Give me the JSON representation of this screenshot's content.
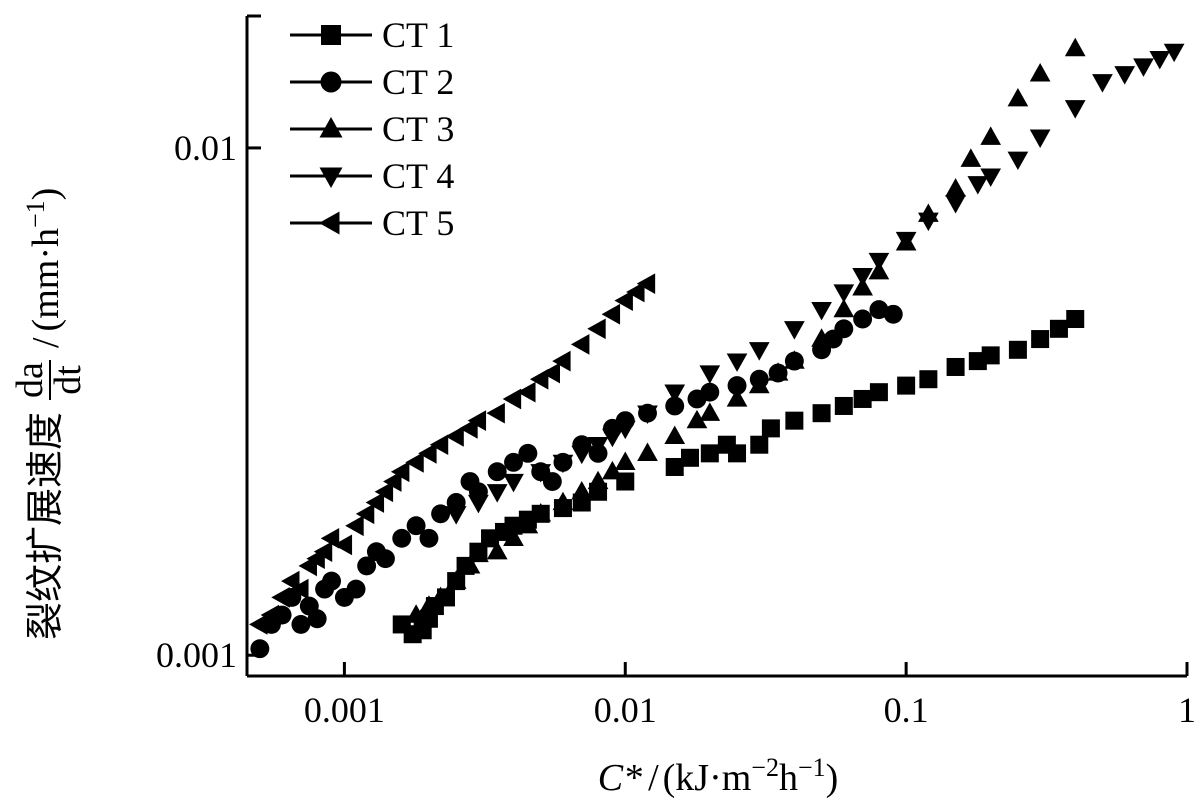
{
  "chart_data": {
    "type": "scatter",
    "xscale": "log",
    "yscale": "log",
    "xlim": [
      0.00045,
      1.0
    ],
    "ylim": [
      0.00091,
      0.0182
    ],
    "grid": false,
    "legend_position": "top-left",
    "xlabel": {
      "symbol": "C*",
      "sep": "/",
      "open": "(",
      "unit": "kJ·m",
      "exp1": "−2",
      "unit2": "h",
      "exp2": "−1",
      "close": ")"
    },
    "ylabel": {
      "cjk": "裂纹扩展速度",
      "frac_num": "da",
      "frac_den": "dt",
      "sep": "/",
      "open": "(",
      "unit": "mm·h",
      "exp": "−1",
      "close": ")"
    },
    "x_ticks": [
      {
        "value": 0.001,
        "label": "0.001"
      },
      {
        "value": 0.01,
        "label": "0.01"
      },
      {
        "value": 0.1,
        "label": "0.1"
      },
      {
        "value": 1,
        "label": "1"
      }
    ],
    "y_ticks": [
      {
        "value": 0.001,
        "label": "0.001"
      },
      {
        "value": 0.01,
        "label": "0.01"
      }
    ],
    "series": [
      {
        "name": "CT 1",
        "marker": "square",
        "points": [
          [
            0.0016,
            0.00115
          ],
          [
            0.00175,
            0.0011
          ],
          [
            0.0019,
            0.00112
          ],
          [
            0.002,
            0.00118
          ],
          [
            0.0021,
            0.00125
          ],
          [
            0.0023,
            0.0013
          ],
          [
            0.0025,
            0.0014
          ],
          [
            0.0027,
            0.0015
          ],
          [
            0.003,
            0.0016
          ],
          [
            0.0033,
            0.0017
          ],
          [
            0.0037,
            0.00175
          ],
          [
            0.004,
            0.0018
          ],
          [
            0.0045,
            0.00185
          ],
          [
            0.005,
            0.0019
          ],
          [
            0.006,
            0.00195
          ],
          [
            0.007,
            0.002
          ],
          [
            0.008,
            0.0021
          ],
          [
            0.01,
            0.0022
          ],
          [
            0.015,
            0.00235
          ],
          [
            0.017,
            0.00245
          ],
          [
            0.02,
            0.0025
          ],
          [
            0.023,
            0.0026
          ],
          [
            0.025,
            0.0025
          ],
          [
            0.03,
            0.0026
          ],
          [
            0.033,
            0.0028
          ],
          [
            0.04,
            0.0029
          ],
          [
            0.05,
            0.003
          ],
          [
            0.06,
            0.0031
          ],
          [
            0.07,
            0.0032
          ],
          [
            0.08,
            0.0033
          ],
          [
            0.1,
            0.0034
          ],
          [
            0.12,
            0.0035
          ],
          [
            0.15,
            0.0037
          ],
          [
            0.18,
            0.0038
          ],
          [
            0.2,
            0.0039
          ],
          [
            0.25,
            0.004
          ],
          [
            0.3,
            0.0042
          ],
          [
            0.35,
            0.0044
          ],
          [
            0.4,
            0.0046
          ]
        ]
      },
      {
        "name": "CT 2",
        "marker": "circle",
        "points": [
          [
            0.0005,
            0.00103
          ],
          [
            0.00055,
            0.00115
          ],
          [
            0.0006,
            0.0012
          ],
          [
            0.00065,
            0.0013
          ],
          [
            0.0007,
            0.00115
          ],
          [
            0.00075,
            0.00125
          ],
          [
            0.0008,
            0.00118
          ],
          [
            0.00085,
            0.00135
          ],
          [
            0.0009,
            0.0014
          ],
          [
            0.001,
            0.0013
          ],
          [
            0.0011,
            0.00135
          ],
          [
            0.0012,
            0.0015
          ],
          [
            0.0013,
            0.0016
          ],
          [
            0.0014,
            0.00155
          ],
          [
            0.0016,
            0.0017
          ],
          [
            0.0018,
            0.0018
          ],
          [
            0.002,
            0.0017
          ],
          [
            0.0022,
            0.0019
          ],
          [
            0.0025,
            0.002
          ],
          [
            0.0028,
            0.0022
          ],
          [
            0.003,
            0.0021
          ],
          [
            0.0035,
            0.0023
          ],
          [
            0.004,
            0.0024
          ],
          [
            0.0045,
            0.0025
          ],
          [
            0.005,
            0.0023
          ],
          [
            0.0055,
            0.0022
          ],
          [
            0.006,
            0.0024
          ],
          [
            0.007,
            0.0026
          ],
          [
            0.008,
            0.0025
          ],
          [
            0.009,
            0.0028
          ],
          [
            0.01,
            0.0029
          ],
          [
            0.012,
            0.003
          ],
          [
            0.015,
            0.0031
          ],
          [
            0.018,
            0.0032
          ],
          [
            0.02,
            0.0033
          ],
          [
            0.025,
            0.0034
          ],
          [
            0.03,
            0.0035
          ],
          [
            0.035,
            0.0036
          ],
          [
            0.04,
            0.0038
          ],
          [
            0.05,
            0.004
          ],
          [
            0.055,
            0.0042
          ],
          [
            0.06,
            0.0044
          ],
          [
            0.07,
            0.0046
          ],
          [
            0.08,
            0.0048
          ],
          [
            0.09,
            0.0047
          ]
        ]
      },
      {
        "name": "CT 3",
        "marker": "triangle-up",
        "points": [
          [
            0.0018,
            0.0012
          ],
          [
            0.002,
            0.00125
          ],
          [
            0.0022,
            0.0013
          ],
          [
            0.0025,
            0.0014
          ],
          [
            0.0028,
            0.0015
          ],
          [
            0.003,
            0.00158
          ],
          [
            0.0035,
            0.0016
          ],
          [
            0.004,
            0.0017
          ],
          [
            0.0045,
            0.0018
          ],
          [
            0.005,
            0.0019
          ],
          [
            0.006,
            0.002
          ],
          [
            0.007,
            0.0021
          ],
          [
            0.008,
            0.0022
          ],
          [
            0.009,
            0.0023
          ],
          [
            0.01,
            0.0024
          ],
          [
            0.012,
            0.0025
          ],
          [
            0.015,
            0.0027
          ],
          [
            0.018,
            0.0029
          ],
          [
            0.02,
            0.003
          ],
          [
            0.025,
            0.0032
          ],
          [
            0.03,
            0.0034
          ],
          [
            0.035,
            0.0036
          ],
          [
            0.04,
            0.0038
          ],
          [
            0.05,
            0.0042
          ],
          [
            0.06,
            0.0048
          ],
          [
            0.07,
            0.0053
          ],
          [
            0.08,
            0.0057
          ],
          [
            0.1,
            0.0065
          ],
          [
            0.12,
            0.0074
          ],
          [
            0.15,
            0.0083
          ],
          [
            0.17,
            0.0095
          ],
          [
            0.2,
            0.0105
          ],
          [
            0.25,
            0.0125
          ],
          [
            0.3,
            0.014
          ],
          [
            0.4,
            0.0157
          ]
        ]
      },
      {
        "name": "CT 4",
        "marker": "triangle-down",
        "points": [
          [
            0.0025,
            0.0019
          ],
          [
            0.003,
            0.002
          ],
          [
            0.0035,
            0.0021
          ],
          [
            0.004,
            0.0022
          ],
          [
            0.005,
            0.0023
          ],
          [
            0.006,
            0.0024
          ],
          [
            0.007,
            0.0025
          ],
          [
            0.008,
            0.0026
          ],
          [
            0.009,
            0.0027
          ],
          [
            0.01,
            0.0028
          ],
          [
            0.012,
            0.003
          ],
          [
            0.015,
            0.0033
          ],
          [
            0.02,
            0.0036
          ],
          [
            0.025,
            0.0038
          ],
          [
            0.03,
            0.004
          ],
          [
            0.04,
            0.0044
          ],
          [
            0.05,
            0.0048
          ],
          [
            0.06,
            0.0052
          ],
          [
            0.07,
            0.0056
          ],
          [
            0.08,
            0.006
          ],
          [
            0.1,
            0.0066
          ],
          [
            0.12,
            0.0072
          ],
          [
            0.15,
            0.0078
          ],
          [
            0.18,
            0.0085
          ],
          [
            0.2,
            0.0088
          ],
          [
            0.25,
            0.0095
          ],
          [
            0.3,
            0.0105
          ],
          [
            0.4,
            0.012
          ],
          [
            0.5,
            0.0135
          ],
          [
            0.6,
            0.014
          ],
          [
            0.7,
            0.0145
          ],
          [
            0.8,
            0.015
          ],
          [
            0.9,
            0.0155
          ]
        ]
      },
      {
        "name": "CT 5",
        "marker": "triangle-left",
        "points": [
          [
            0.0005,
            0.00115
          ],
          [
            0.00055,
            0.0012
          ],
          [
            0.0006,
            0.0013
          ],
          [
            0.00065,
            0.0014
          ],
          [
            0.0007,
            0.00135
          ],
          [
            0.00075,
            0.0015
          ],
          [
            0.0008,
            0.00155
          ],
          [
            0.00085,
            0.0016
          ],
          [
            0.0009,
            0.0017
          ],
          [
            0.001,
            0.00165
          ],
          [
            0.0011,
            0.0018
          ],
          [
            0.0012,
            0.0019
          ],
          [
            0.0013,
            0.002
          ],
          [
            0.0014,
            0.0021
          ],
          [
            0.0015,
            0.0022
          ],
          [
            0.0016,
            0.0023
          ],
          [
            0.0018,
            0.0024
          ],
          [
            0.002,
            0.0025
          ],
          [
            0.0022,
            0.0026
          ],
          [
            0.0025,
            0.0027
          ],
          [
            0.0028,
            0.0028
          ],
          [
            0.003,
            0.0029
          ],
          [
            0.0035,
            0.003
          ],
          [
            0.004,
            0.0032
          ],
          [
            0.0045,
            0.0033
          ],
          [
            0.005,
            0.0035
          ],
          [
            0.0055,
            0.0036
          ],
          [
            0.006,
            0.0038
          ],
          [
            0.007,
            0.0041
          ],
          [
            0.008,
            0.0044
          ],
          [
            0.009,
            0.0047
          ],
          [
            0.01,
            0.005
          ],
          [
            0.011,
            0.0052
          ],
          [
            0.012,
            0.0054
          ]
        ]
      }
    ]
  }
}
